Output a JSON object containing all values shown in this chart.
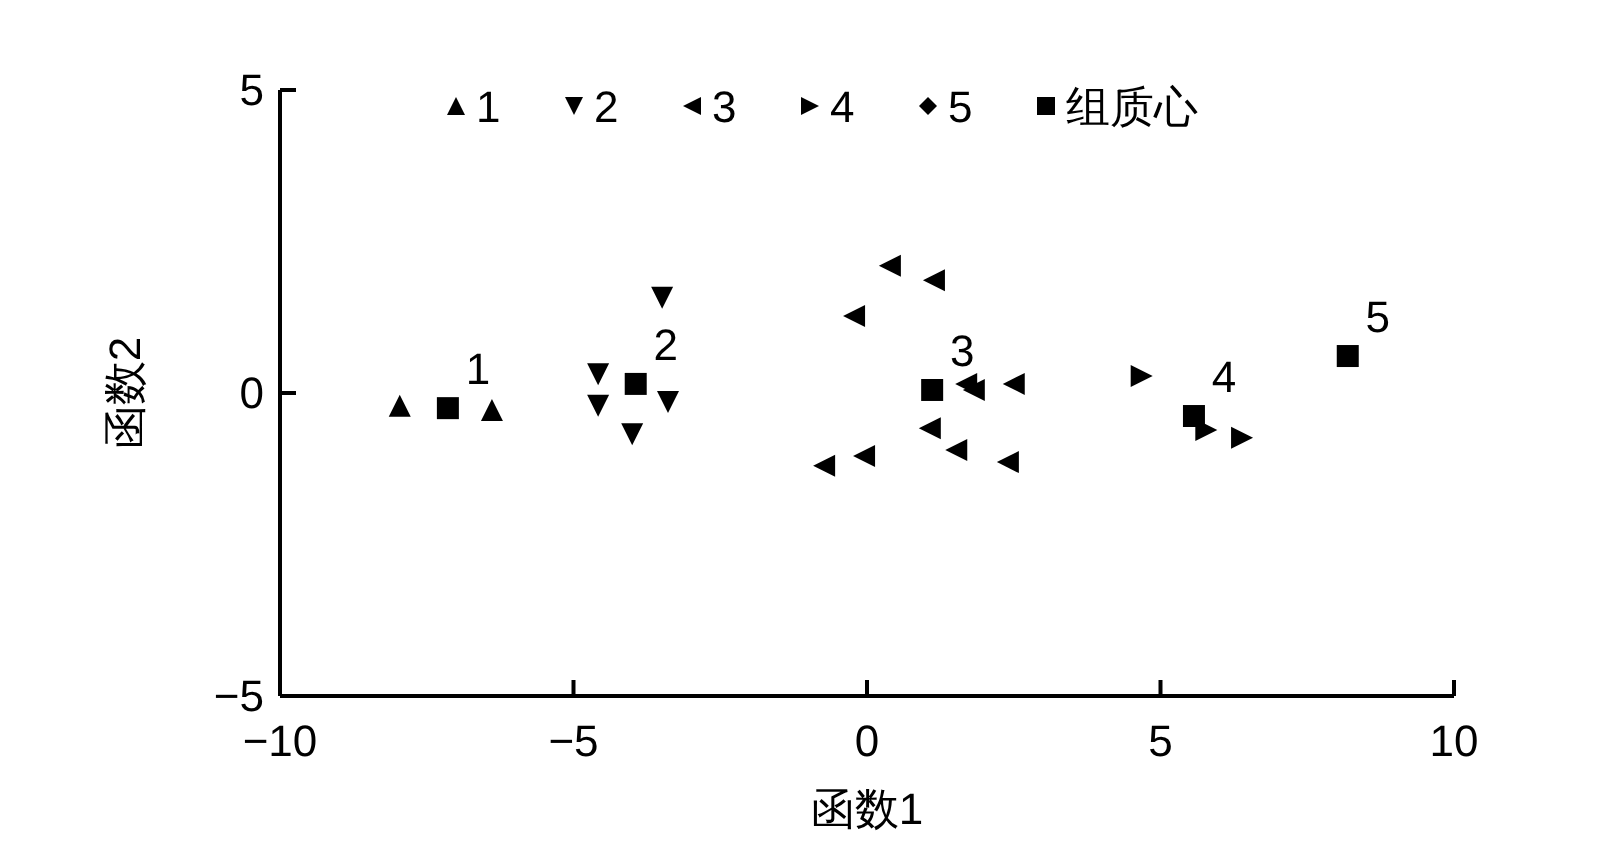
{
  "chart_data": {
    "type": "scatter",
    "xlabel": "函数1",
    "ylabel": "函数2",
    "xlim": [
      -10,
      10
    ],
    "ylim": [
      -5,
      5
    ],
    "xticks": [
      {
        "value": -10,
        "label": "−10"
      },
      {
        "value": -5,
        "label": "−5"
      },
      0,
      5,
      10
    ],
    "yticks": [
      {
        "value": -5,
        "label": "−5"
      },
      0,
      5
    ],
    "grid": false,
    "legend": "top",
    "series": [
      {
        "name": "1",
        "color": "#000000",
        "marker": "triangle-up",
        "x": [
          -7.96,
          -6.39
        ],
        "values": [
          -0.21,
          -0.28
        ]
      },
      {
        "name": "2",
        "color": "#000000",
        "marker": "triangle-down",
        "x": [
          -4.58,
          -4.58,
          -4.0,
          -3.39,
          -3.49
        ],
        "values": [
          0.31,
          -0.21,
          -0.68,
          -0.15,
          1.57
        ]
      },
      {
        "name": "3",
        "color": "#000000",
        "marker": "triangle-left",
        "x": [
          0.39,
          1.14,
          -0.22,
          1.69,
          1.82,
          2.5,
          1.07,
          1.52,
          2.4,
          -0.05,
          -0.73
        ],
        "values": [
          2.1,
          1.86,
          1.27,
          0.15,
          0.05,
          0.15,
          -0.58,
          -0.94,
          -1.14,
          -1.04,
          -1.2
        ]
      },
      {
        "name": "4",
        "color": "#000000",
        "marker": "triangle-right",
        "x": [
          4.68,
          5.78,
          6.39
        ],
        "values": [
          0.28,
          -0.61,
          -0.74
        ]
      },
      {
        "name": "5",
        "color": "#000000",
        "marker": "diamond"
      },
      {
        "name": "组质心",
        "color": "#000000",
        "marker": "square",
        "x": [
          -7.14,
          -3.94,
          1.11,
          5.57,
          8.19
        ],
        "values": [
          -0.25,
          0.15,
          0.05,
          -0.38,
          0.61
        ]
      }
    ],
    "annotations": [
      {
        "text": "1",
        "x": -7.14,
        "y": -0.25
      },
      {
        "text": "2",
        "x": -3.94,
        "y": 0.15
      },
      {
        "text": "3",
        "x": 1.11,
        "y": 0.05
      },
      {
        "text": "4",
        "x": 5.57,
        "y": -0.38
      },
      {
        "text": "5",
        "x": 8.19,
        "y": 0.61
      }
    ]
  }
}
